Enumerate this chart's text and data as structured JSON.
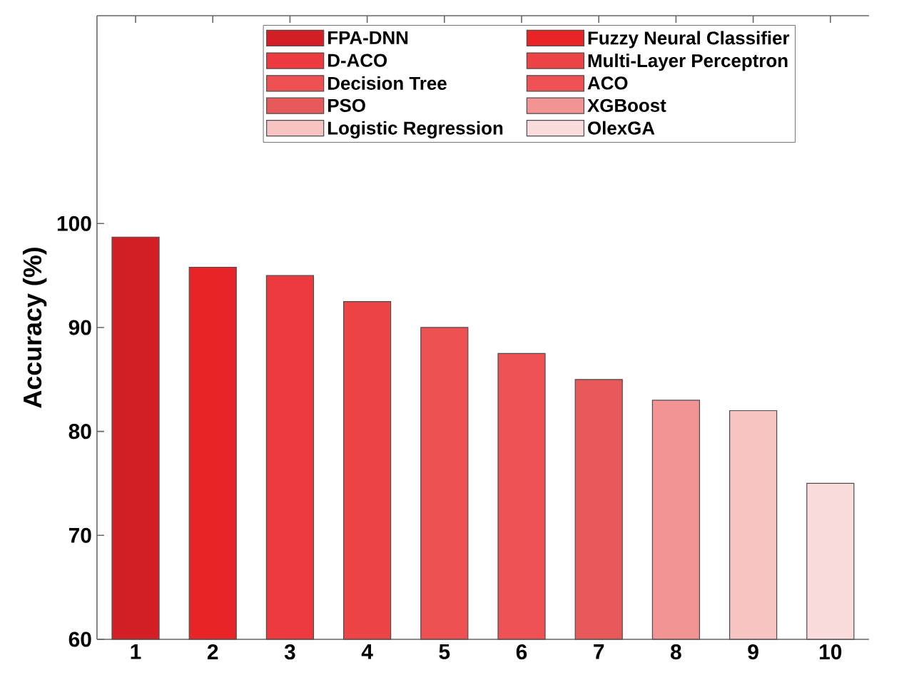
{
  "chart_data": {
    "type": "bar",
    "ylabel": "Accuracy (%)",
    "categories": [
      "1",
      "2",
      "3",
      "4",
      "5",
      "6",
      "7",
      "8",
      "9",
      "10"
    ],
    "series": [
      {
        "name": "FPA-DNN",
        "color": "#d41f26",
        "values": [
          98.7,
          null,
          null,
          null,
          null,
          null,
          null,
          null,
          null,
          null
        ]
      },
      {
        "name": "Fuzzy Neural Classifier",
        "color": "#e82427",
        "values": [
          null,
          95.8,
          null,
          null,
          null,
          null,
          null,
          null,
          null,
          null
        ]
      },
      {
        "name": "D-ACO",
        "color": "#ec3a3e",
        "values": [
          null,
          null,
          95,
          null,
          null,
          null,
          null,
          null,
          null,
          null
        ]
      },
      {
        "name": "Multi-Layer Perceptron",
        "color": "#ed4446",
        "values": [
          null,
          null,
          null,
          92.5,
          null,
          null,
          null,
          null,
          null,
          null
        ]
      },
      {
        "name": "Decision Tree",
        "color": "#ef5052",
        "values": [
          null,
          null,
          null,
          null,
          90,
          null,
          null,
          null,
          null,
          null
        ]
      },
      {
        "name": "ACO",
        "color": "#ef5154",
        "values": [
          null,
          null,
          null,
          null,
          null,
          87.5,
          null,
          null,
          null,
          null
        ]
      },
      {
        "name": "PSO",
        "color": "#e85a5a",
        "values": [
          null,
          null,
          null,
          null,
          null,
          null,
          85,
          null,
          null,
          null
        ]
      },
      {
        "name": "XGBoost",
        "color": "#f39494",
        "values": [
          null,
          null,
          null,
          null,
          null,
          null,
          null,
          83,
          null,
          null
        ]
      },
      {
        "name": "Logistic Regression",
        "color": "#f7c3c3",
        "values": [
          null,
          null,
          null,
          null,
          null,
          null,
          null,
          null,
          82,
          null
        ]
      },
      {
        "name": "OlexGA",
        "color": "#fbdcdc",
        "values": [
          null,
          null,
          null,
          null,
          null,
          null,
          null,
          null,
          null,
          75
        ]
      }
    ],
    "ylim": [
      60,
      120
    ],
    "yticks": [
      60,
      70,
      80,
      90,
      100
    ],
    "grid": false,
    "legend": "top"
  }
}
